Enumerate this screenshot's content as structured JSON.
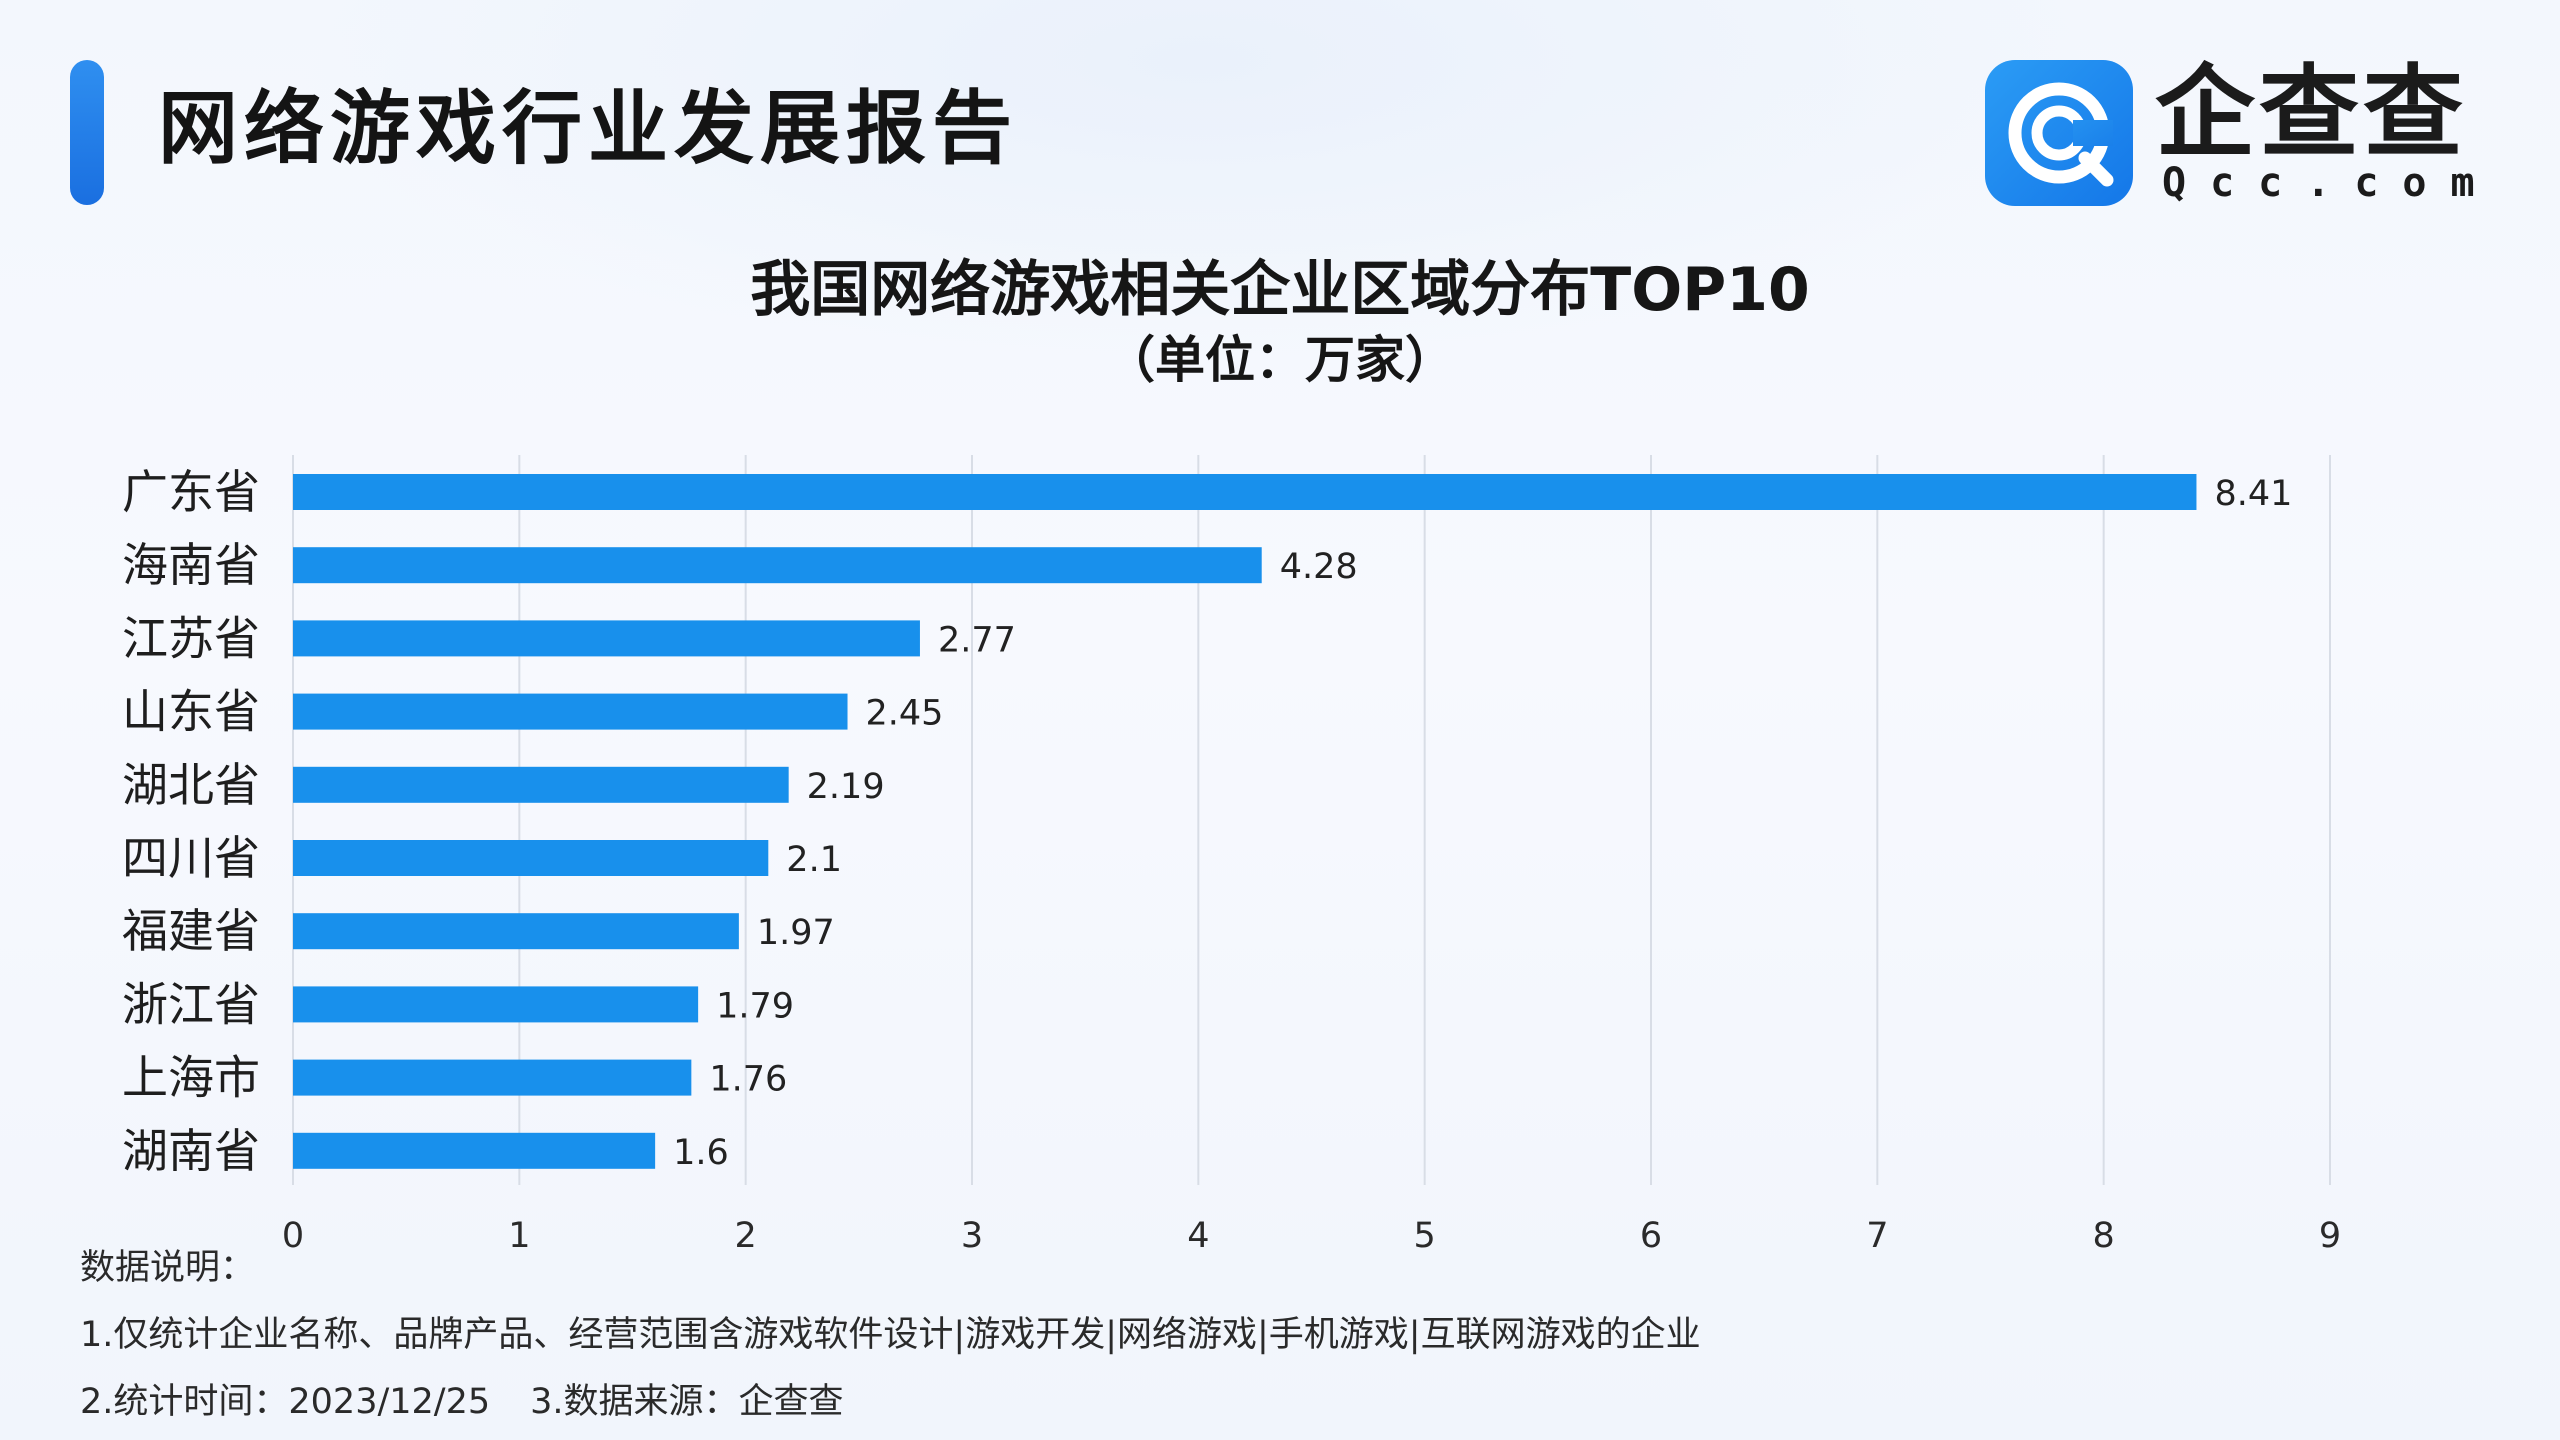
{
  "header": {
    "report_title": "网络游戏行业发展报告",
    "brand_name": "企查查",
    "brand_domain": "Qcc.com",
    "logo_icon": "qcc-logo-icon"
  },
  "colors": {
    "accent": "#1a7fe8",
    "bar": "#1890ec",
    "grid": "#d8dde6"
  },
  "chart_data": {
    "type": "bar",
    "orientation": "horizontal",
    "title": "我国网络游戏相关企业区域分布TOP10",
    "subtitle": "（单位：万家）",
    "categories": [
      "广东省",
      "海南省",
      "江苏省",
      "山东省",
      "湖北省",
      "四川省",
      "福建省",
      "浙江省",
      "上海市",
      "湖南省"
    ],
    "values": [
      8.41,
      4.28,
      2.77,
      2.45,
      2.19,
      2.1,
      1.97,
      1.79,
      1.76,
      1.6
    ],
    "value_labels": [
      "8.41",
      "4.28",
      "2.77",
      "2.45",
      "2.19",
      "2.1",
      "1.97",
      "1.79",
      "1.76",
      "1.6"
    ],
    "xlim": [
      0,
      9
    ],
    "x_ticks": [
      "0",
      "1",
      "2",
      "3",
      "4",
      "5",
      "6",
      "7",
      "8",
      "9"
    ],
    "grid": true,
    "legend": "none"
  },
  "notes": {
    "heading": "数据说明：",
    "line1": "1.仅统计企业名称、品牌产品、经营范围含游戏软件设计|游戏开发|网络游戏|手机游戏|互联网游戏的企业",
    "line2_a": "2.统计时间：2023/12/25",
    "line2_b": "3.数据来源：企查查"
  }
}
